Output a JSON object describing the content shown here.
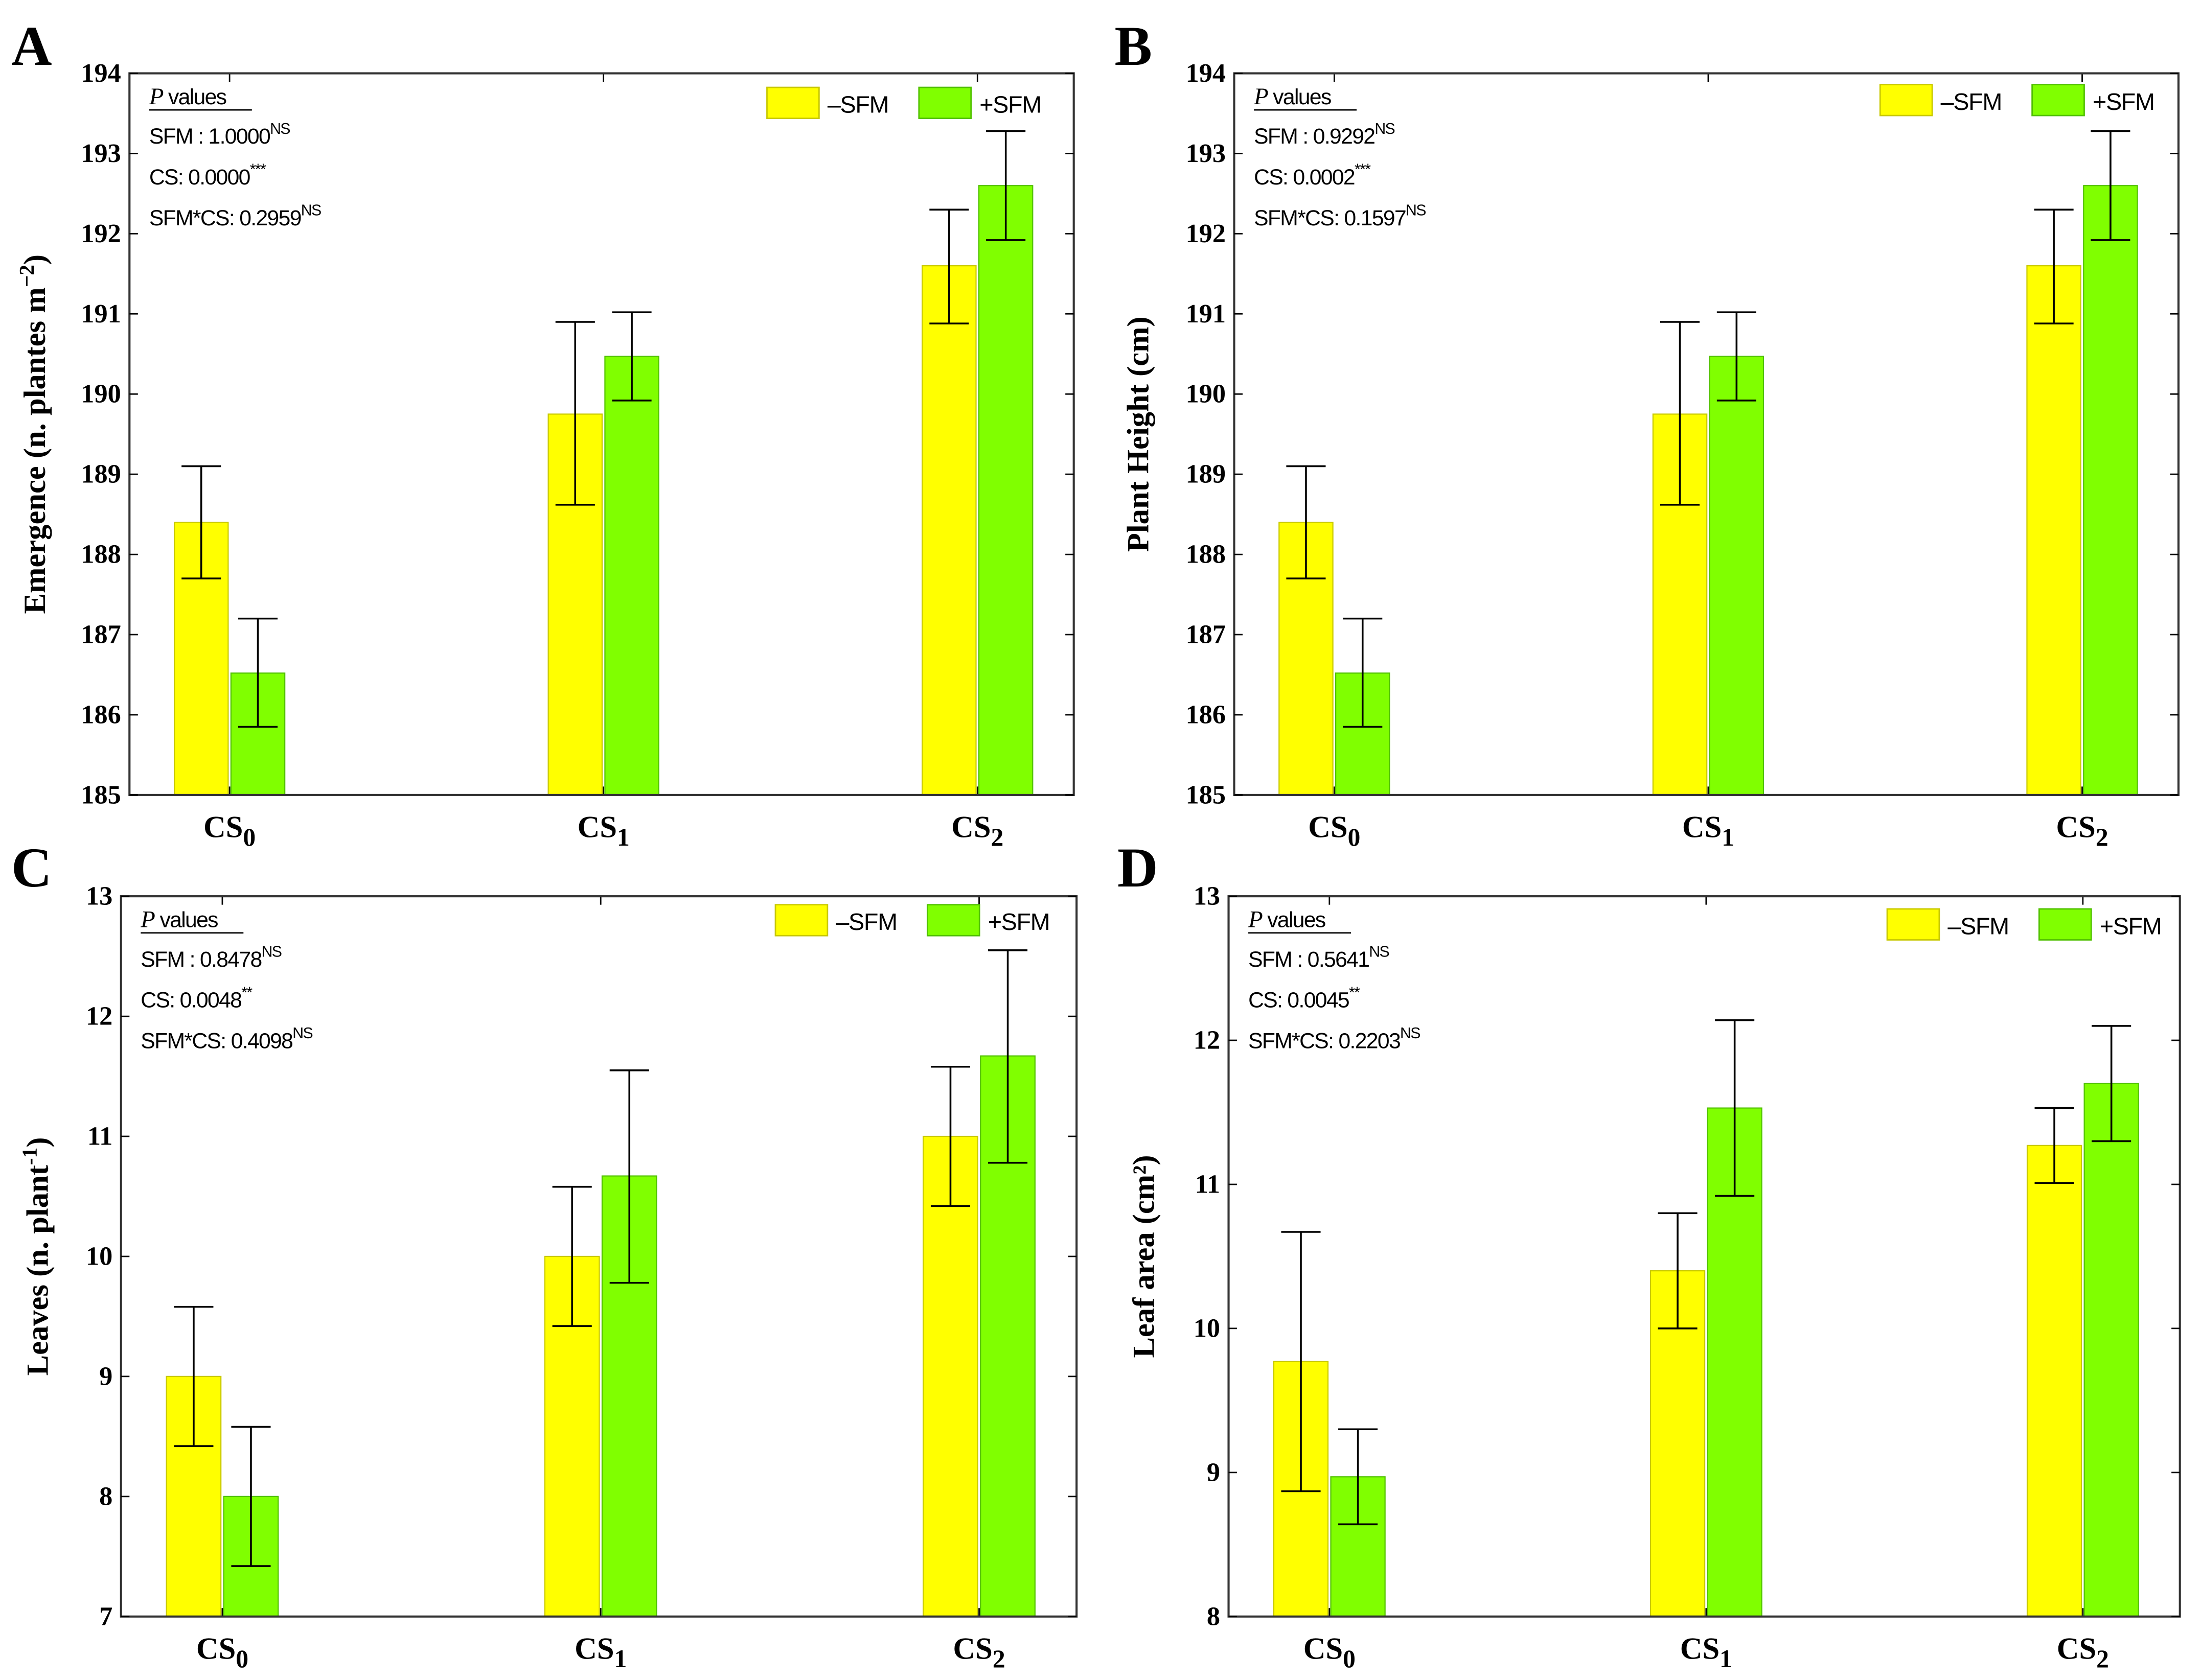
{
  "chart_data": [
    {
      "panel": "A",
      "type": "bar",
      "ylabel": {
        "text": "Emergence (n. plantes m",
        "sup": "−2",
        "tail": ")"
      },
      "ylim": [
        185,
        194
      ],
      "yticks": [
        185,
        186,
        187,
        188,
        189,
        190,
        191,
        192,
        193,
        194
      ],
      "categories": [
        {
          "base": "CS",
          "sub": "0"
        },
        {
          "base": "CS",
          "sub": "1"
        },
        {
          "base": "CS",
          "sub": "2"
        }
      ],
      "series": [
        {
          "name": "–SFM",
          "color": "#ffff00",
          "values": [
            188.4,
            189.75,
            191.6
          ],
          "err_low": [
            187.7,
            188.62,
            190.88
          ],
          "err_high": [
            189.1,
            190.9,
            192.3
          ]
        },
        {
          "name": "+SFM",
          "color": "#80ff00",
          "values": [
            186.52,
            190.47,
            192.6
          ],
          "err_low": [
            185.85,
            189.92,
            191.92
          ],
          "err_high": [
            187.2,
            191.02,
            193.28
          ]
        }
      ],
      "annotation": {
        "title_italic": "P",
        "title_rest": " values",
        "lines": [
          {
            "text": "SFM : 1.0000",
            "sup": "NS"
          },
          {
            "text": "CS: 0.0000",
            "sup": "***"
          },
          {
            "text": "SFM*CS: 0.2959",
            "sup": "NS"
          }
        ]
      },
      "legend": "top-right"
    },
    {
      "panel": "B",
      "type": "bar",
      "ylabel": {
        "text": "Plant Height (cm)",
        "sup": "",
        "tail": ""
      },
      "ylim": [
        185,
        194
      ],
      "yticks": [
        185,
        186,
        187,
        188,
        189,
        190,
        191,
        192,
        193,
        194
      ],
      "categories": [
        {
          "base": "CS",
          "sub": "0"
        },
        {
          "base": "CS",
          "sub": "1"
        },
        {
          "base": "CS",
          "sub": "2"
        }
      ],
      "series": [
        {
          "name": "–SFM",
          "color": "#ffff00",
          "values": [
            188.4,
            189.75,
            191.6
          ],
          "err_low": [
            187.7,
            188.62,
            190.88
          ],
          "err_high": [
            189.1,
            190.9,
            192.3
          ]
        },
        {
          "name": "+SFM",
          "color": "#80ff00",
          "values": [
            186.52,
            190.47,
            192.6
          ],
          "err_low": [
            185.85,
            189.92,
            191.92
          ],
          "err_high": [
            187.2,
            191.02,
            193.28
          ]
        }
      ],
      "annotation": {
        "title_italic": "P",
        "title_rest": " values",
        "lines": [
          {
            "text": "SFM : 0.9292",
            "sup": "NS"
          },
          {
            "text": "CS: 0.0002",
            "sup": "***"
          },
          {
            "text": "SFM*CS: 0.1597",
            "sup": "NS"
          }
        ]
      },
      "legend": "top-right"
    },
    {
      "panel": "C",
      "type": "bar",
      "ylabel": {
        "text": "Leaves (n. plant",
        "sup": "-1",
        "tail": ")"
      },
      "ylim": [
        7,
        13
      ],
      "yticks": [
        7,
        8,
        9,
        10,
        11,
        12,
        13
      ],
      "categories": [
        {
          "base": "CS",
          "sub": "0"
        },
        {
          "base": "CS",
          "sub": "1"
        },
        {
          "base": "CS",
          "sub": "2"
        }
      ],
      "series": [
        {
          "name": "–SFM",
          "color": "#ffff00",
          "values": [
            9.0,
            10.0,
            11.0
          ],
          "err_low": [
            8.42,
            9.42,
            10.42
          ],
          "err_high": [
            9.58,
            10.58,
            11.58
          ]
        },
        {
          "name": "+SFM",
          "color": "#80ff00",
          "values": [
            8.0,
            10.67,
            11.67
          ],
          "err_low": [
            7.42,
            9.78,
            10.78
          ],
          "err_high": [
            8.58,
            11.55,
            12.55
          ]
        }
      ],
      "annotation": {
        "title_italic": "P",
        "title_rest": " values",
        "lines": [
          {
            "text": "SFM : 0.8478",
            "sup": "NS"
          },
          {
            "text": "CS: 0.0048",
            "sup": "**"
          },
          {
            "text": "SFM*CS: 0.4098",
            "sup": "NS"
          }
        ]
      },
      "legend": "top-right"
    },
    {
      "panel": "D",
      "type": "bar",
      "ylabel": {
        "text": "Leaf area (cm²)",
        "sup": "",
        "tail": ""
      },
      "ylim": [
        8,
        13
      ],
      "yticks": [
        8,
        9,
        10,
        11,
        12,
        13
      ],
      "categories": [
        {
          "base": "CS",
          "sub": "0"
        },
        {
          "base": "CS",
          "sub": "1"
        },
        {
          "base": "CS",
          "sub": "2"
        }
      ],
      "series": [
        {
          "name": "–SFM",
          "color": "#ffff00",
          "values": [
            9.77,
            10.4,
            11.27
          ],
          "err_low": [
            8.87,
            10.0,
            11.01
          ],
          "err_high": [
            10.67,
            10.8,
            11.53
          ]
        },
        {
          "name": "+SFM",
          "color": "#80ff00",
          "values": [
            8.97,
            11.53,
            11.7
          ],
          "err_low": [
            8.64,
            10.92,
            11.3
          ],
          "err_high": [
            9.3,
            12.14,
            12.1
          ]
        }
      ],
      "annotation": {
        "title_italic": "P",
        "title_rest": " values",
        "lines": [
          {
            "text": "SFM : 0.5641",
            "sup": "NS"
          },
          {
            "text": "CS: 0.0045",
            "sup": "**"
          },
          {
            "text": "SFM*CS: 0.2203",
            "sup": "NS"
          }
        ]
      },
      "legend": "top-right"
    }
  ]
}
